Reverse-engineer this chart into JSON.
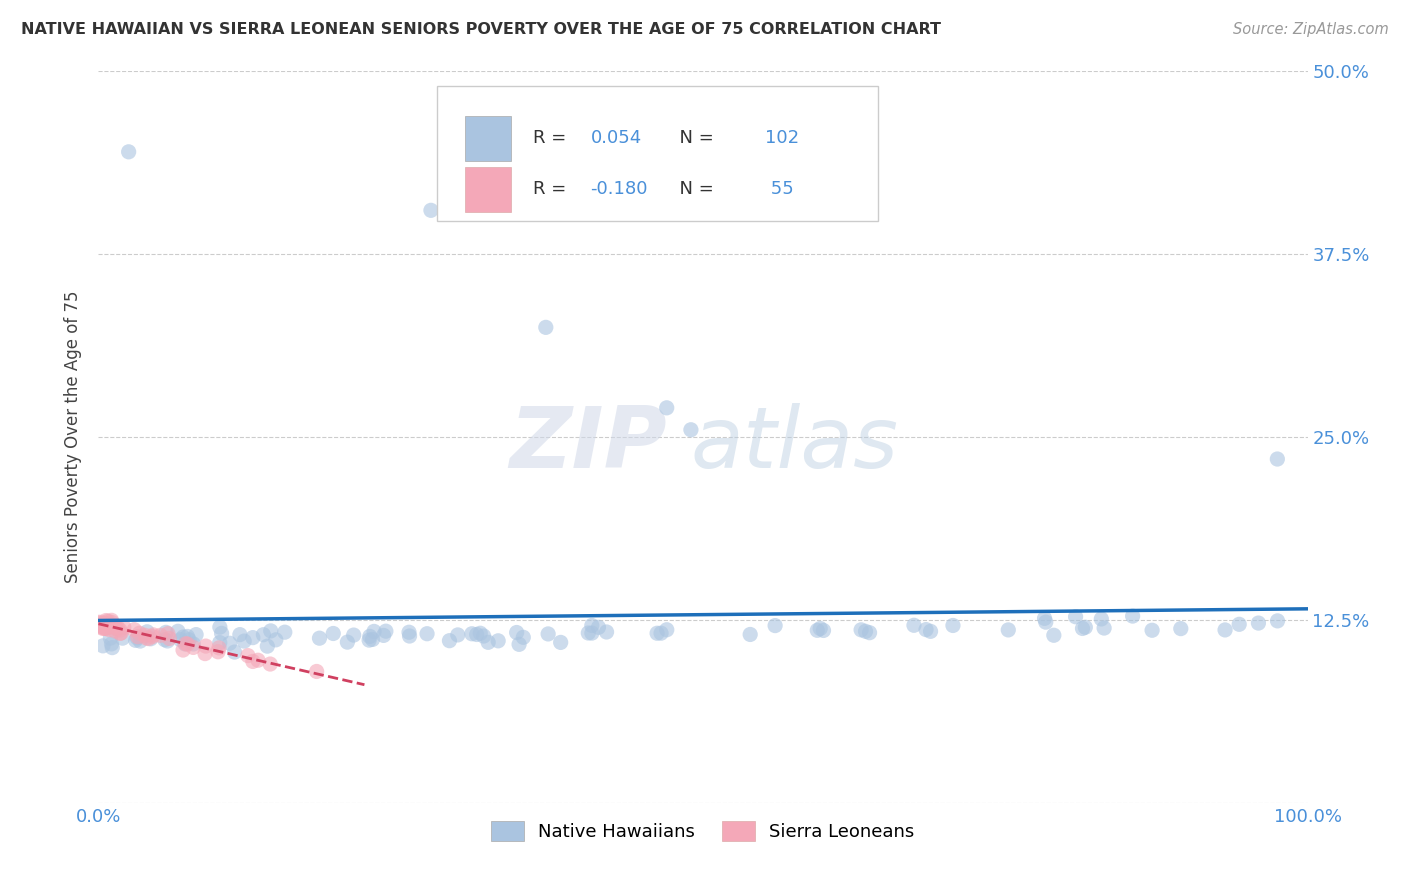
{
  "title": "NATIVE HAWAIIAN VS SIERRA LEONEAN SENIORS POVERTY OVER THE AGE OF 75 CORRELATION CHART",
  "source": "Source: ZipAtlas.com",
  "ylabel": "Seniors Poverty Over the Age of 75",
  "xlim": [
    0.0,
    1.0
  ],
  "ylim": [
    0.0,
    0.5
  ],
  "yticks": [
    0.0,
    0.125,
    0.25,
    0.375,
    0.5
  ],
  "yticklabels": [
    "",
    "12.5%",
    "25.0%",
    "37.5%",
    "50.0%"
  ],
  "grid_color": "#cccccc",
  "background_color": "#ffffff",
  "native_hawaiian_color": "#aac4e0",
  "sierra_leonean_color": "#f4a8b8",
  "native_hawaiian_R": 0.054,
  "native_hawaiian_N": 102,
  "sierra_leonean_R": -0.18,
  "sierra_leonean_N": 55,
  "native_hawaiian_line_color": "#1e6fba",
  "sierra_leonean_line_color": "#d04060",
  "tick_color": "#4a90d9",
  "watermark_text": "ZIPatlas",
  "marker_size": 120,
  "marker_alpha": 0.6,
  "nh_seed": 7,
  "sl_seed": 3
}
